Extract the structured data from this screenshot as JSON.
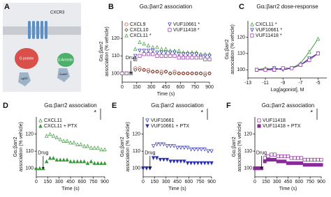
{
  "diagram": {
    "panel": "A",
    "labels": [
      "CXCR3",
      "G protein",
      "β-Arrestin",
      "LgBiT",
      "SmBiT"
    ]
  },
  "chart_data": [
    {
      "panel": "B",
      "type": "scatter",
      "title": "Gαᵢ:βarr2 association",
      "ylabel": [
        "Gαᵢ:βarr2",
        "association (% vehicle)"
      ],
      "xlabel": "Time (s)",
      "xlim": [
        0,
        900
      ],
      "xticks": [
        0,
        150,
        300,
        450,
        600,
        750,
        900
      ],
      "ylim": [
        95,
        130
      ],
      "yticks": [
        100,
        110,
        120
      ],
      "annotations": [
        {
          "text": "Drug",
          "x": 90
        }
      ],
      "x": [
        0,
        45,
        90,
        135,
        180,
        225,
        270,
        315,
        360,
        405,
        450,
        495,
        540,
        585,
        630,
        675,
        720,
        765,
        810,
        855,
        900
      ],
      "series": [
        {
          "name": "CXCL9",
          "color": "#c0392b",
          "marker": "circle",
          "filled": false,
          "values": [
            100,
            100,
            100,
            103,
            103,
            102,
            102,
            101,
            101,
            101,
            101,
            100,
            101,
            100,
            100,
            100,
            100,
            100,
            100,
            100,
            100
          ]
        },
        {
          "name": "CXCL10",
          "color": "#5a3020",
          "marker": "diamond",
          "filled": false,
          "values": [
            100,
            100,
            100,
            102,
            102,
            102,
            101,
            101,
            101,
            100,
            101,
            100,
            100,
            100,
            100,
            100,
            100,
            100,
            100,
            99,
            100
          ]
        },
        {
          "name": "CXCL11 *",
          "color": "#3a9a3a",
          "marker": "triangle",
          "filled": false,
          "values": [
            100,
            100,
            100,
            114,
            118,
            117,
            116,
            115,
            115,
            114,
            114,
            113,
            113,
            113,
            112,
            112,
            112,
            112,
            111,
            111,
            111
          ]
        },
        {
          "name": "VUF10661 *",
          "color": "#2a2fb0",
          "marker": "triangle-down",
          "filled": false,
          "values": [
            100,
            100,
            100,
            110,
            113,
            113,
            113,
            113,
            112,
            112,
            112,
            112,
            112,
            111,
            111,
            111,
            111,
            111,
            110,
            110,
            110
          ]
        },
        {
          "name": "VUF11418 *",
          "color": "#8a2a9a",
          "marker": "square",
          "filled": false,
          "values": [
            100,
            100,
            100,
            108,
            110,
            111,
            111,
            111,
            110,
            110,
            110,
            110,
            110,
            109,
            109,
            109,
            109,
            109,
            109,
            108,
            108
          ]
        }
      ]
    },
    {
      "panel": "C",
      "type": "line",
      "title": "Gαᵢ:βarr2 dose-response",
      "ylabel": [
        "Gαᵢ:βarr2",
        "association (% vehicle)"
      ],
      "xlabel": "Log[agonist], M",
      "xlim": [
        -13,
        -4
      ],
      "xticks": [
        -13,
        -11,
        -9,
        -7,
        -5
      ],
      "ylim": [
        95,
        130
      ],
      "yticks": [
        100,
        110,
        120
      ],
      "x": [
        -12,
        -11,
        -10,
        -9,
        -8,
        -7,
        -6,
        -5
      ],
      "series": [
        {
          "name": "CXCL11 *",
          "color": "#3a9a3a",
          "marker": "triangle",
          "filled": false,
          "values": [
            100,
            101,
            100,
            101,
            101,
            104,
            111,
            119
          ]
        },
        {
          "name": "VUF10661 *",
          "color": "#2a2fb0",
          "marker": "triangle-down",
          "filled": false,
          "values": [
            100,
            100,
            101,
            100,
            101,
            103,
            107,
            110
          ]
        },
        {
          "name": "VUF11418 *",
          "color": "#8a2a9a",
          "marker": "square",
          "filled": false,
          "values": [
            100,
            100,
            100,
            101,
            101,
            103,
            106,
            110
          ]
        }
      ]
    },
    {
      "panel": "D",
      "type": "scatter",
      "title": "Gαᵢ:βarr2 association",
      "ylabel": [
        "Gαᵢ:βarr2",
        "association (% vehicle)"
      ],
      "xlabel": "Time (s)",
      "xlim": [
        0,
        900
      ],
      "xticks": [
        0,
        150,
        300,
        450,
        600,
        750,
        900
      ],
      "ylim": [
        95,
        130
      ],
      "yticks": [
        100,
        110,
        120
      ],
      "annotations": [
        {
          "text": "Drug",
          "x": 90
        }
      ],
      "significance": "*",
      "x": [
        0,
        45,
        90,
        135,
        180,
        225,
        270,
        315,
        360,
        405,
        450,
        495,
        540,
        585,
        630,
        675,
        720,
        765,
        810,
        855,
        900
      ],
      "series": [
        {
          "name": "CXCL11",
          "color": "#3a9a3a",
          "marker": "triangle",
          "filled": false,
          "values": [
            100,
            100,
            100,
            119,
            120,
            119,
            118,
            117,
            116,
            116,
            115,
            115,
            114,
            114,
            113,
            113,
            112,
            112,
            112,
            111,
            111
          ]
        },
        {
          "name": "CXCL11 + PTX",
          "color": "#3a9a3a",
          "marker": "triangle",
          "filled": true,
          "values": [
            100,
            100,
            100,
            104,
            106,
            106,
            105,
            105,
            105,
            105,
            104,
            104,
            104,
            104,
            104,
            103,
            104,
            103,
            103,
            103,
            103
          ]
        }
      ]
    },
    {
      "panel": "E",
      "type": "scatter",
      "title": "Gαᵢ:βarr2 association",
      "ylabel": [
        "Gαᵢ:βarr2",
        "association (% vehicle)"
      ],
      "xlabel": "Time (s)",
      "xlim": [
        0,
        900
      ],
      "xticks": [
        0,
        150,
        300,
        450,
        600,
        750,
        900
      ],
      "ylim": [
        95,
        130
      ],
      "yticks": [
        100,
        110,
        120
      ],
      "annotations": [
        {
          "text": "Drug",
          "x": 90
        }
      ],
      "significance": "*",
      "x": [
        0,
        45,
        90,
        135,
        180,
        225,
        270,
        315,
        360,
        405,
        450,
        495,
        540,
        585,
        630,
        675,
        720,
        765,
        810,
        855,
        900
      ],
      "series": [
        {
          "name": "VUF10661",
          "color": "#2a2fb0",
          "marker": "triangle-down",
          "filled": false,
          "values": [
            100,
            100,
            100,
            113,
            114,
            114,
            114,
            113,
            113,
            113,
            112,
            112,
            112,
            112,
            111,
            111,
            111,
            111,
            111,
            110,
            110
          ]
        },
        {
          "name": "VUF10661 + PTX",
          "color": "#2a2fb0",
          "marker": "triangle-down",
          "filled": true,
          "values": [
            100,
            100,
            100,
            106,
            106,
            105,
            105,
            105,
            104,
            104,
            104,
            104,
            104,
            103,
            103,
            103,
            103,
            103,
            103,
            103,
            103
          ]
        }
      ]
    },
    {
      "panel": "F",
      "type": "scatter",
      "title": "Gαᵢ:βarr2 association",
      "ylabel": [
        "Gαᵢ:βarr2",
        "association (% vehicle)"
      ],
      "xlabel": "Time (s)",
      "xlim": [
        0,
        900
      ],
      "xticks": [
        0,
        150,
        300,
        450,
        600,
        750,
        900
      ],
      "ylim": [
        95,
        130
      ],
      "yticks": [
        100,
        110,
        120
      ],
      "annotations": [
        {
          "text": "Drug",
          "x": 90
        }
      ],
      "significance": "*",
      "x": [
        0,
        45,
        90,
        135,
        180,
        225,
        270,
        315,
        360,
        405,
        450,
        495,
        540,
        585,
        630,
        675,
        720,
        765,
        810,
        855,
        900
      ],
      "series": [
        {
          "name": "VUF11418",
          "color": "#8a2a9a",
          "marker": "square",
          "filled": false,
          "values": [
            100,
            100,
            100,
            106,
            107,
            108,
            108,
            107,
            107,
            107,
            107,
            106,
            106,
            106,
            106,
            105,
            105,
            105,
            105,
            105,
            105
          ]
        },
        {
          "name": "VUF11418 + PTX",
          "color": "#8a2a9a",
          "marker": "square",
          "filled": true,
          "values": [
            100,
            100,
            100,
            104,
            105,
            105,
            105,
            104,
            104,
            104,
            103,
            103,
            103,
            103,
            103,
            102,
            102,
            102,
            102,
            102,
            102
          ]
        }
      ]
    }
  ]
}
